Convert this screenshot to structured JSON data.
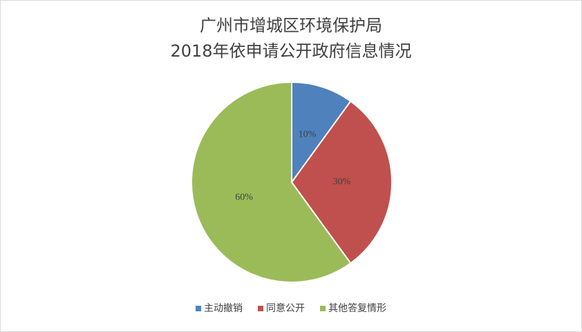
{
  "chart_data": {
    "type": "pie",
    "title": [
      "广州市增城区环境保护局",
      "2018年依申请公开政府信息情况"
    ],
    "categories": [
      "主动撤销",
      "同意公开",
      "其他答复情形"
    ],
    "values": [
      10,
      30,
      60
    ],
    "value_labels": [
      "10%",
      "30%",
      "60%"
    ],
    "colors": [
      "#4f81bd",
      "#c0504d",
      "#9bbb59"
    ],
    "legend": "bottom"
  }
}
